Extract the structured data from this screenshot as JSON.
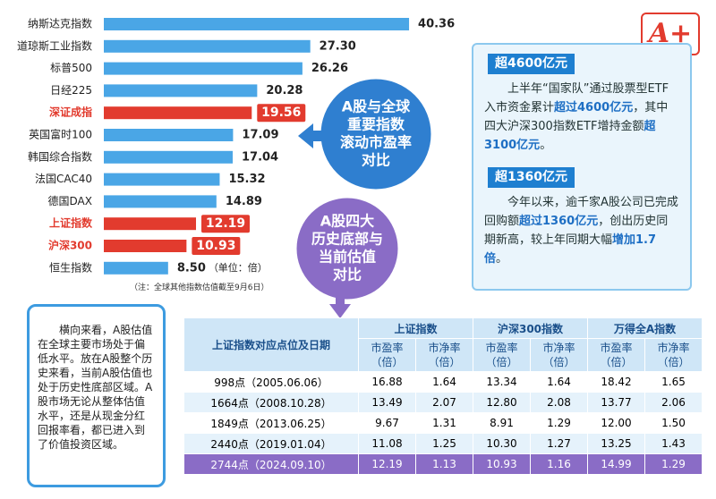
{
  "chart_data": {
    "type": "bar",
    "orientation": "horizontal",
    "categories": [
      "纳斯达克指数",
      "道琼斯工业指数",
      "标普500",
      "日经225",
      "深证成指",
      "英国富时100",
      "韩国综合指数",
      "法国CAC40",
      "德国DAX",
      "上证指数",
      "沪深300",
      "恒生指数"
    ],
    "values": [
      40.36,
      27.3,
      26.26,
      20.28,
      19.56,
      17.09,
      17.04,
      15.32,
      14.89,
      12.19,
      10.93,
      8.5
    ],
    "value_labels": [
      "40.36",
      "27.30",
      "26.26",
      "20.28",
      "19.56",
      "17.09",
      "17.04",
      "15.32",
      "14.89",
      "12.19",
      "10.93",
      "8.50"
    ],
    "color": "#4aa6e6",
    "colors": [
      "#4aa6e6",
      "#4aa6e6",
      "#4aa6e6",
      "#4aa6e6",
      "#e23b2e",
      "#4aa6e6",
      "#4aa6e6",
      "#4aa6e6",
      "#4aa6e6",
      "#e23b2e",
      "#e23b2e",
      "#4aa6e6"
    ],
    "unit_note": "（单位：倍）",
    "note": "（注：全球其他指数估值截至9月6日）"
  },
  "logo": "A+",
  "bubbles": [
    {
      "lines": [
        "A股与全球",
        "重要指数",
        "滚动市盈率",
        "对比"
      ],
      "color": "#2f7fd0"
    },
    {
      "lines": [
        "A股四大",
        "历史底部与",
        "当前估值",
        "对比"
      ],
      "color": "#8a6cc6"
    }
  ],
  "info_panel": {
    "sections": [
      {
        "badge": "超4600亿元",
        "parts": [
          {
            "text": "上半年“国家队”通过股票型ETF入市资金累计",
            "bold": false
          },
          {
            "text": "超过4600亿元",
            "bold": true
          },
          {
            "text": "，其中四大沪深300指数ETF增持金额",
            "bold": false
          },
          {
            "text": "超3100亿元",
            "bold": true
          },
          {
            "text": "。",
            "bold": false
          }
        ]
      },
      {
        "badge": "超1360亿元",
        "parts": [
          {
            "text": "今年以来，逾千家A股公司已完成回购额",
            "bold": false
          },
          {
            "text": "超过1360亿元",
            "bold": true
          },
          {
            "text": "，创出历史同期新高，较上年同期大幅",
            "bold": false
          },
          {
            "text": "增加1.7倍",
            "bold": true
          },
          {
            "text": "。",
            "bold": false
          }
        ]
      }
    ]
  },
  "side_note": "横向来看，A股估值在全球主要市场处于偏低水平。放在A股整个历史来看，当前A股估值也处于历史性底部区域。A股市场无论从整体估值水平，还是从现金分红回报率看，都已进入到了价值投资区域。",
  "table": {
    "corner": "上证指数对应点位及日期",
    "groups": [
      "上证指数",
      "沪深300指数",
      "万得全A指数"
    ],
    "subheaders": [
      [
        "市盈率",
        "（倍）"
      ],
      [
        "市净率",
        "（倍）"
      ]
    ],
    "rows": [
      [
        "998点（2005.06.06）",
        "16.88",
        "1.64",
        "13.34",
        "1.64",
        "18.42",
        "1.65"
      ],
      [
        "1664点（2008.10.28）",
        "13.49",
        "2.07",
        "12.80",
        "2.08",
        "13.77",
        "2.06"
      ],
      [
        "1849点（2013.06.25）",
        "9.67",
        "1.31",
        "8.91",
        "1.29",
        "12.00",
        "1.50"
      ],
      [
        "2440点（2019.01.04）",
        "11.08",
        "1.25",
        "10.30",
        "1.27",
        "13.25",
        "1.43"
      ],
      [
        "2744点（2024.09.10）",
        "12.19",
        "1.13",
        "10.93",
        "1.16",
        "14.99",
        "1.29"
      ]
    ]
  }
}
